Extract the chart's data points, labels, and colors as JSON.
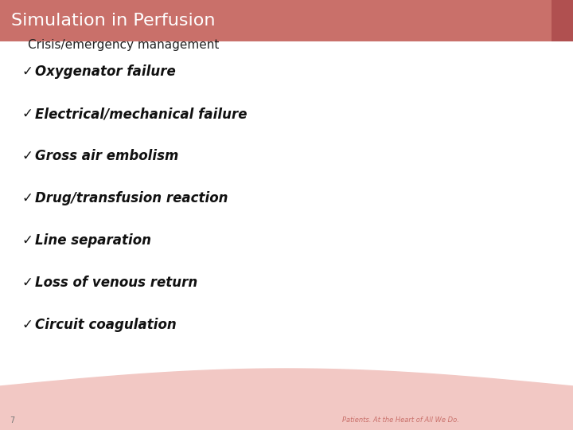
{
  "title": "Simulation in Perfusion",
  "title_bg_color": "#c9706a",
  "title_text_color": "#ffffff",
  "title_accent_color": "#b05050",
  "bg_color": "#ffffff",
  "footer_bg_color": "#f2c8c4",
  "subtitle": "Crisis/emergency management",
  "subtitle_color": "#222222",
  "bullet_items": [
    "✓Oxygenator failure",
    "✓Electrical/mechanical failure",
    "✓Gross air embolism",
    "✓Drug/transfusion reaction",
    "✓Line separation",
    "✓Loss of venous return",
    "✓Circuit coagulation"
  ],
  "bullet_color": "#111111",
  "page_number": "7",
  "footer_text": "Patients. At the Heart of All We Do.",
  "footer_text_color": "#c9706a",
  "fig_width": 7.2,
  "fig_height": 5.4,
  "dpi": 100
}
